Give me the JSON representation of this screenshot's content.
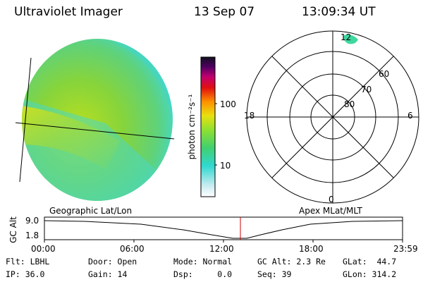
{
  "header": {
    "title": "Ultraviolet Imager",
    "date": "13 Sep 07",
    "time": "13:09:34 UT"
  },
  "colorbar": {
    "axis_label": "photon cm⁻²s⁻¹",
    "ticks": [
      "100",
      "10"
    ]
  },
  "polar": {
    "mlt_labels": {
      "top": "12",
      "left": "18",
      "right": "6",
      "bottom": "0"
    },
    "lat_labels": [
      "60",
      "70",
      "80"
    ]
  },
  "timeline": {
    "left_label": "Geographic Lat/Lon",
    "right_label": "Apex MLat/MLT",
    "y_title": "GC Alt",
    "y_ticks": [
      "9.0",
      "1.8"
    ],
    "x_ticks": [
      "00:00",
      "06:00",
      "12:00",
      "18:00",
      "23:59"
    ],
    "marker_color": "#cc0000"
  },
  "status": {
    "flt": "Flt: LBHL",
    "ip": "IP: 36.0",
    "door": "Door: Open",
    "gain": "Gain: 14",
    "mode": "Mode: Normal",
    "dsp": "Dsp:     0.0",
    "gcalt": "GC Alt: 2.3 Re",
    "seq": "Seq: 39",
    "glat": "GLat:  44.7",
    "glon": "GLon: 314.2"
  }
}
